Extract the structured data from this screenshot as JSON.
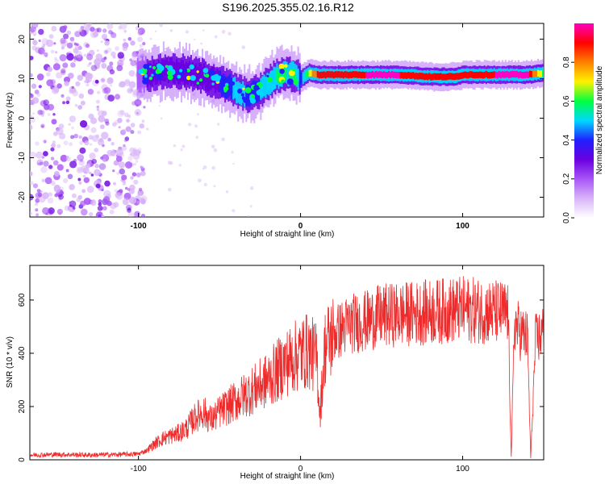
{
  "title": "S196.2025.355.02.16.R12",
  "colors": {
    "snr_line": "#ee2a2a",
    "colormap": [
      "#ffffff",
      "#d8b4f8",
      "#a855f7",
      "#6a00e0",
      "#2020ff",
      "#00d8ff",
      "#00ff40",
      "#fff200",
      "#ff8000",
      "#ff0000",
      "#ff00c0"
    ]
  },
  "chart_data": [
    {
      "type": "heatmap",
      "xlabel": "Height of straight line (km)",
      "ylabel": "Frequency (Hz)",
      "xlim": [
        -167,
        150
      ],
      "ylim": [
        -25,
        24
      ],
      "xticks": [
        -100,
        0,
        100
      ],
      "yticks": [
        -20,
        -10,
        0,
        10,
        20
      ],
      "colorbar": {
        "label": "Normalized spectral amplitude",
        "range": [
          0,
          1
        ],
        "ticks": [
          0.0,
          0.2,
          0.4,
          0.6,
          0.8
        ]
      },
      "ridge": {
        "x": [
          -100,
          -90,
          -80,
          -70,
          -60,
          -50,
          -45,
          -40,
          -35,
          -30,
          -25,
          -20,
          -15,
          -10,
          -5,
          0,
          5,
          10,
          20,
          40,
          60,
          80,
          95,
          100,
          120,
          140,
          150
        ],
        "frequency": [
          11,
          11.5,
          12,
          11.5,
          10.5,
          9,
          8,
          7,
          6,
          6,
          7,
          9,
          10.5,
          11.5,
          11,
          10,
          11.5,
          11,
          11,
          11,
          11,
          10.5,
          10.5,
          11,
          11,
          11,
          11.5
        ],
        "amplitude": [
          0.2,
          0.3,
          0.3,
          0.25,
          0.3,
          0.35,
          0.4,
          0.5,
          0.45,
          0.4,
          0.45,
          0.5,
          0.55,
          0.6,
          0.6,
          0.4,
          0.7,
          0.85,
          0.9,
          0.95,
          0.95,
          0.9,
          0.85,
          0.9,
          0.95,
          0.95,
          0.6
        ]
      },
      "noise_region_x": [
        -167,
        -100
      ]
    },
    {
      "type": "line",
      "xlabel": "Height of straight line (km)",
      "ylabel": "SNR (10 * v/v)",
      "xlim": [
        -167,
        150
      ],
      "ylim": [
        0,
        730
      ],
      "xticks": [
        -100,
        0,
        100
      ],
      "yticks": [
        0,
        200,
        400,
        600
      ],
      "x": [
        -167,
        -150,
        -130,
        -110,
        -100,
        -95,
        -90,
        -85,
        -80,
        -75,
        -70,
        -65,
        -60,
        -55,
        -50,
        -45,
        -40,
        -35,
        -30,
        -25,
        -20,
        -15,
        -10,
        -5,
        0,
        5,
        10,
        12,
        15,
        20,
        25,
        30,
        40,
        50,
        60,
        70,
        80,
        90,
        100,
        110,
        120,
        128,
        130,
        132,
        135,
        140,
        142,
        145,
        150
      ],
      "y": [
        18,
        20,
        18,
        20,
        22,
        35,
        60,
        80,
        90,
        100,
        120,
        160,
        180,
        150,
        180,
        200,
        220,
        240,
        260,
        280,
        300,
        330,
        360,
        380,
        400,
        410,
        380,
        170,
        420,
        470,
        490,
        510,
        520,
        540,
        545,
        550,
        555,
        560,
        565,
        560,
        555,
        550,
        10,
        520,
        480,
        460,
        5,
        450,
        480
      ]
    }
  ]
}
